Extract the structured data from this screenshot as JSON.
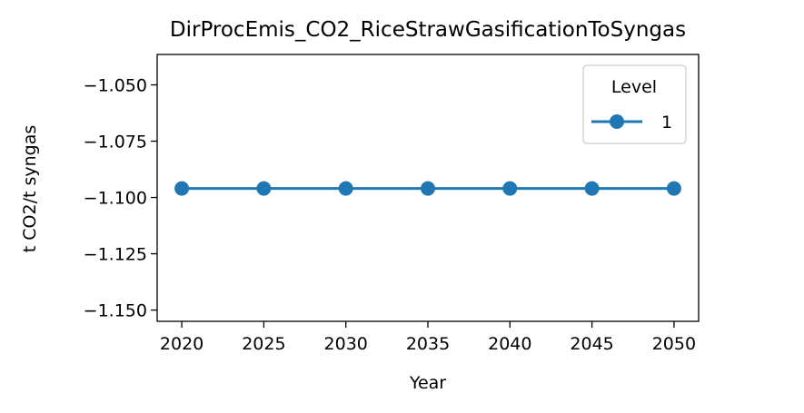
{
  "chart_data": {
    "type": "line",
    "title": "DirProcEmis_CO2_RiceStrawGasificationToSyngas",
    "xlabel": "Year",
    "ylabel": "t CO2/t syngas",
    "x": [
      2020,
      2025,
      2030,
      2035,
      2040,
      2045,
      2050
    ],
    "x_ticks": [
      "2020",
      "2025",
      "2030",
      "2035",
      "2040",
      "2045",
      "2050"
    ],
    "y_ticks": [
      "−1.050",
      "−1.075",
      "−1.100",
      "−1.125",
      "−1.150"
    ],
    "y_tick_values": [
      -1.05,
      -1.075,
      -1.1,
      -1.125,
      -1.15
    ],
    "ylim": [
      -1.155,
      -1.0365
    ],
    "xlim": [
      2018.5,
      2051.5
    ],
    "series": [
      {
        "name": "1",
        "values": [
          -1.096,
          -1.096,
          -1.096,
          -1.096,
          -1.096,
          -1.096,
          -1.096
        ]
      }
    ],
    "legend": {
      "title": "Level",
      "placement": "top-right"
    },
    "grid": false,
    "colors": {
      "series": "#1f77b4"
    }
  }
}
